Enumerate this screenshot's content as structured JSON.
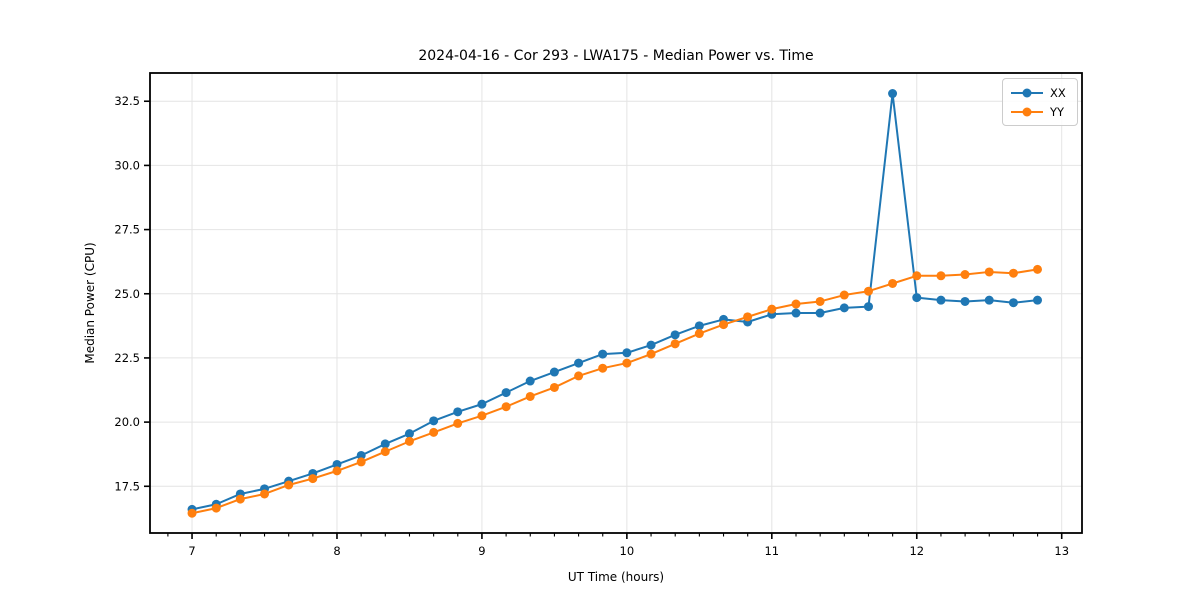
{
  "chart_data": {
    "type": "line",
    "title": "2024-04-16 - Cor 293 - LWA175 - Median Power vs. Time",
    "xlabel": "UT Time (hours)",
    "ylabel": "Median Power (CPU)",
    "xlim": [
      6.71,
      13.14
    ],
    "ylim": [
      15.68,
      33.6
    ],
    "x_ticks": [
      7,
      8,
      9,
      10,
      11,
      12,
      13
    ],
    "x_tick_labels": [
      "7",
      "8",
      "9",
      "10",
      "11",
      "12",
      "13"
    ],
    "x_minor_tick_interval": 0.16667,
    "y_ticks": [
      17.5,
      20.0,
      22.5,
      25.0,
      27.5,
      30.0,
      32.5
    ],
    "y_tick_labels": [
      "17.5",
      "20.0",
      "22.5",
      "25.0",
      "27.5",
      "30.0",
      "32.5"
    ],
    "grid": true,
    "grid_color": "#e4e4e4",
    "spine_color": "#000000",
    "legend_position": "top-right",
    "x": [
      7.0,
      7.167,
      7.333,
      7.5,
      7.667,
      7.833,
      8.0,
      8.167,
      8.333,
      8.5,
      8.667,
      8.833,
      9.0,
      9.167,
      9.333,
      9.5,
      9.667,
      9.833,
      10.0,
      10.167,
      10.333,
      10.5,
      10.667,
      10.833,
      11.0,
      11.167,
      11.333,
      11.5,
      11.667,
      11.833,
      12.0,
      12.167,
      12.333,
      12.5,
      12.667,
      12.833
    ],
    "series": [
      {
        "name": "XX",
        "color": "#1f77b4",
        "marker": "circle",
        "values": [
          16.6,
          16.8,
          17.2,
          17.4,
          17.7,
          18.0,
          18.35,
          18.7,
          19.15,
          19.55,
          20.05,
          20.4,
          20.7,
          21.15,
          21.6,
          21.95,
          22.3,
          22.65,
          22.7,
          23.0,
          23.4,
          23.75,
          24.0,
          23.9,
          24.2,
          24.25,
          24.25,
          24.45,
          24.5,
          32.8,
          24.85,
          24.75,
          24.7,
          24.75,
          24.65,
          24.75
        ]
      },
      {
        "name": "YY",
        "color": "#ff7f0e",
        "marker": "circle",
        "values": [
          16.45,
          16.65,
          17.0,
          17.2,
          17.55,
          17.8,
          18.1,
          18.45,
          18.85,
          19.25,
          19.6,
          19.95,
          20.25,
          20.6,
          21.0,
          21.35,
          21.8,
          22.1,
          22.3,
          22.65,
          23.05,
          23.45,
          23.8,
          24.1,
          24.4,
          24.6,
          24.7,
          24.95,
          25.1,
          25.4,
          25.7,
          25.7,
          25.75,
          25.85,
          25.8,
          25.95
        ]
      }
    ]
  }
}
